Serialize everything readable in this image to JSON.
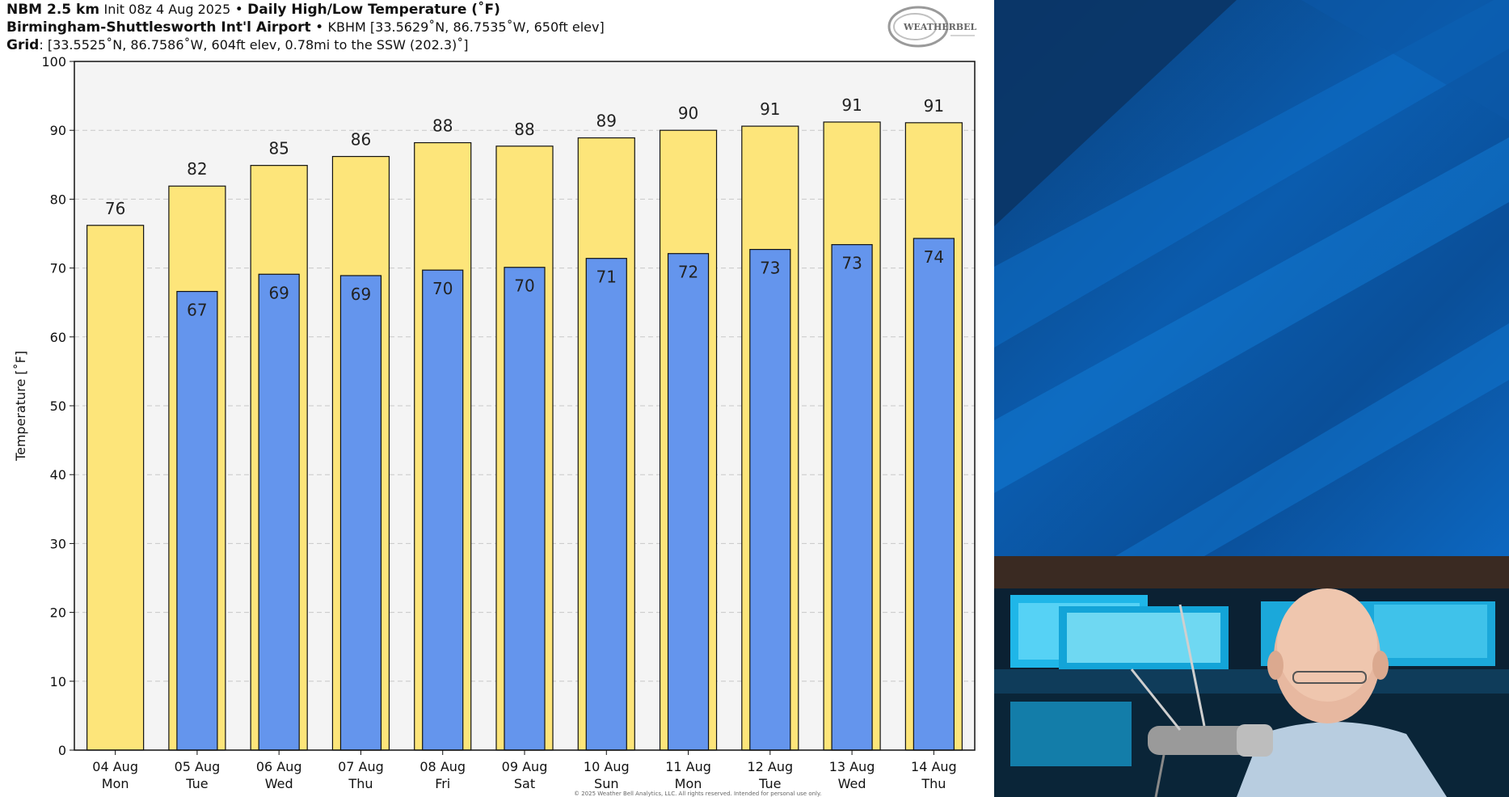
{
  "header": {
    "model": "NBM 2.5 km",
    "init": "Init 08z 4 Aug 2025",
    "product": "Daily High/Low Temperature (˚F)",
    "station_name": "Birmingham-Shuttlesworth Int'l Airport",
    "station_info": "KBHM [33.5629˚N, 86.7535˚W, 650ft elev]",
    "grid_label": "Grid",
    "grid_info": ": [33.5525˚N, 86.7586˚W, 604ft elev, 0.78mi to the SSW (202.3)˚]",
    "separator": "•"
  },
  "logo": {
    "text": "WEATHERBELL"
  },
  "copyright": "© 2025 Weather Bell Analytics, LLC. All rights reserved. Intended for personal use only.",
  "colors": {
    "high_bar": "#fde57a",
    "low_bar": "#6495ed",
    "plot_bg": "#f4f4f4",
    "grid": "#c8c8c8",
    "bar_edge": "#111111"
  },
  "chart_data": {
    "type": "bar",
    "ylabel": "Temperature [˚F]",
    "ylim": [
      0,
      100
    ],
    "yticks": [
      0,
      10,
      20,
      30,
      40,
      50,
      60,
      70,
      80,
      90,
      100
    ],
    "grid": true,
    "categories": [
      {
        "date": "04 Aug",
        "day": "Mon"
      },
      {
        "date": "05 Aug",
        "day": "Tue"
      },
      {
        "date": "06 Aug",
        "day": "Wed"
      },
      {
        "date": "07 Aug",
        "day": "Thu"
      },
      {
        "date": "08 Aug",
        "day": "Fri"
      },
      {
        "date": "09 Aug",
        "day": "Sat"
      },
      {
        "date": "10 Aug",
        "day": "Sun"
      },
      {
        "date": "11 Aug",
        "day": "Mon"
      },
      {
        "date": "12 Aug",
        "day": "Tue"
      },
      {
        "date": "13 Aug",
        "day": "Wed"
      },
      {
        "date": "14 Aug",
        "day": "Thu"
      }
    ],
    "series": [
      {
        "color": "#fde57a",
        "values": [
          76.2,
          81.9,
          84.9,
          86.2,
          88.2,
          87.7,
          88.9,
          90.0,
          90.6,
          91.2,
          91.1
        ],
        "labels": [
          "76",
          "82",
          "85",
          "86",
          "88",
          "88",
          "89",
          "90",
          "91",
          "91",
          "91"
        ]
      },
      {
        "color": "#6495ed",
        "values": [
          null,
          66.6,
          69.1,
          68.9,
          69.7,
          70.1,
          71.4,
          72.1,
          72.7,
          73.4,
          74.3
        ],
        "labels": [
          "",
          "67",
          "69",
          "69",
          "70",
          "70",
          "71",
          "72",
          "73",
          "73",
          "74"
        ]
      }
    ]
  }
}
